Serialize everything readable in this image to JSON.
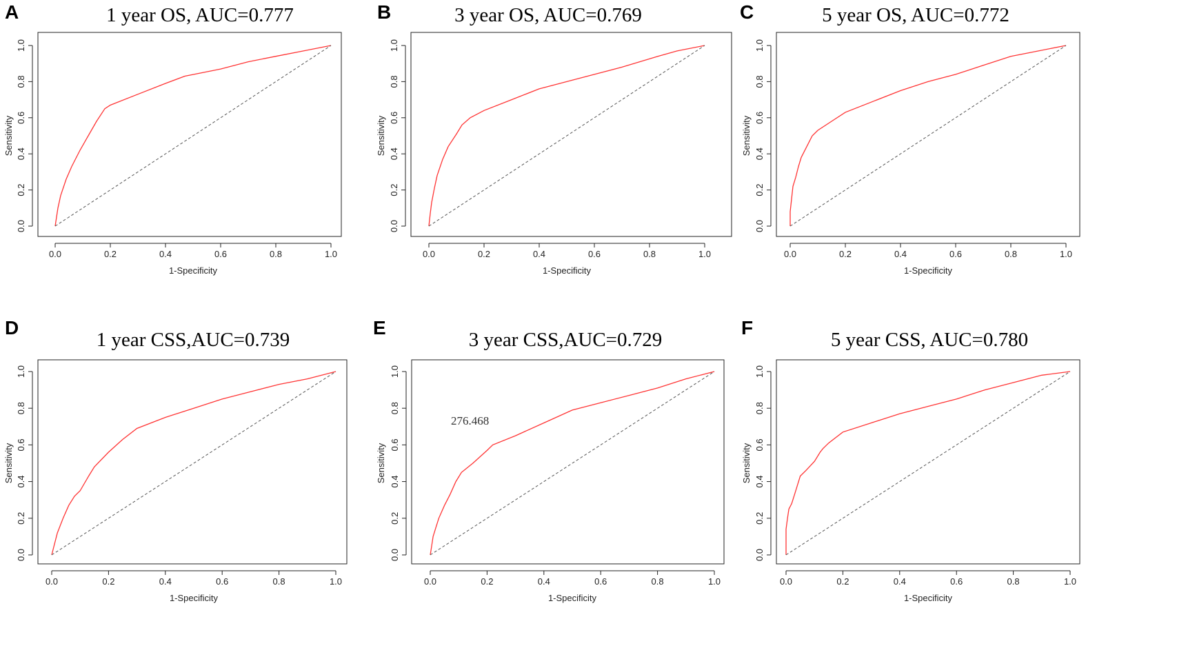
{
  "figure": {
    "panels": [
      {
        "letter": "A",
        "title": "1 year OS, AUC=0.777"
      },
      {
        "letter": "B",
        "title": "3 year OS, AUC=0.769"
      },
      {
        "letter": "C",
        "title": "5 year OS, AUC=0.772"
      },
      {
        "letter": "D",
        "title": "1 year CSS,AUC=0.739"
      },
      {
        "letter": "E",
        "title": "3 year CSS,AUC=0.729"
      },
      {
        "letter": "F",
        "title": "5 year CSS, AUC=0.780"
      }
    ]
  },
  "chart_data": [
    {
      "type": "line",
      "letter": "A",
      "title": "1 year OS, AUC=0.777",
      "xlabel": "1-Specificity",
      "ylabel": "Sensitivity",
      "xlim": [
        0,
        1
      ],
      "ylim": [
        0,
        1
      ],
      "xticks": [
        "0.0",
        "0.2",
        "0.4",
        "0.6",
        "0.8",
        "1.0"
      ],
      "yticks": [
        "0.0",
        "0.2",
        "0.4",
        "0.6",
        "0.8",
        "1.0"
      ],
      "colors": {
        "roc": "#ff3333",
        "reference": "#555555"
      },
      "series": [
        {
          "name": "ROC",
          "x": [
            0,
            0.01,
            0.02,
            0.04,
            0.06,
            0.09,
            0.12,
            0.15,
            0.18,
            0.2,
            0.3,
            0.4,
            0.47,
            0.6,
            0.7,
            0.8,
            0.9,
            1.0
          ],
          "y": [
            0,
            0.1,
            0.17,
            0.26,
            0.33,
            0.42,
            0.5,
            0.58,
            0.65,
            0.67,
            0.73,
            0.79,
            0.83,
            0.87,
            0.91,
            0.94,
            0.97,
            1.0
          ]
        },
        {
          "name": "Reference",
          "x": [
            0,
            1
          ],
          "y": [
            0,
            1
          ]
        }
      ]
    },
    {
      "type": "line",
      "letter": "B",
      "title": "3 year OS, AUC=0.769",
      "xlabel": "1-Specificity",
      "ylabel": "Sensitivity",
      "xlim": [
        0,
        1
      ],
      "ylim": [
        0,
        1
      ],
      "xticks": [
        "0.0",
        "0.2",
        "0.4",
        "0.6",
        "0.8",
        "1.0"
      ],
      "yticks": [
        "0.0",
        "0.2",
        "0.4",
        "0.6",
        "0.8",
        "1.0"
      ],
      "colors": {
        "roc": "#ff3333",
        "reference": "#555555"
      },
      "series": [
        {
          "name": "ROC",
          "x": [
            0,
            0.005,
            0.01,
            0.02,
            0.03,
            0.05,
            0.07,
            0.1,
            0.12,
            0.15,
            0.2,
            0.3,
            0.4,
            0.5,
            0.6,
            0.7,
            0.83,
            0.9,
            1.0
          ],
          "y": [
            0,
            0.07,
            0.13,
            0.21,
            0.28,
            0.37,
            0.44,
            0.51,
            0.56,
            0.6,
            0.64,
            0.7,
            0.76,
            0.8,
            0.84,
            0.88,
            0.94,
            0.97,
            1.0
          ]
        },
        {
          "name": "Reference",
          "x": [
            0,
            1
          ],
          "y": [
            0,
            1
          ]
        }
      ]
    },
    {
      "type": "line",
      "letter": "C",
      "title": "5 year OS, AUC=0.772",
      "xlabel": "1-Specificity",
      "ylabel": "Sensitivity",
      "xlim": [
        0,
        1
      ],
      "ylim": [
        0,
        1
      ],
      "xticks": [
        "0.0",
        "0.2",
        "0.4",
        "0.6",
        "0.8",
        "1.0"
      ],
      "yticks": [
        "0.0",
        "0.2",
        "0.4",
        "0.6",
        "0.8",
        "1.0"
      ],
      "colors": {
        "roc": "#ff3333",
        "reference": "#555555"
      },
      "series": [
        {
          "name": "ROC",
          "x": [
            0,
            0,
            0.005,
            0.01,
            0.02,
            0.03,
            0.04,
            0.06,
            0.08,
            0.1,
            0.15,
            0.2,
            0.3,
            0.4,
            0.5,
            0.6,
            0.7,
            0.8,
            0.9,
            1.0
          ],
          "y": [
            0,
            0.08,
            0.15,
            0.22,
            0.27,
            0.33,
            0.38,
            0.44,
            0.5,
            0.53,
            0.58,
            0.63,
            0.69,
            0.75,
            0.8,
            0.84,
            0.89,
            0.94,
            0.97,
            1.0
          ]
        },
        {
          "name": "Reference",
          "x": [
            0,
            1
          ],
          "y": [
            0,
            1
          ]
        }
      ]
    },
    {
      "type": "line",
      "letter": "D",
      "title": "1 year CSS,AUC=0.739",
      "xlabel": "1-Specificity",
      "ylabel": "Sensitivity",
      "xlim": [
        0,
        1
      ],
      "ylim": [
        0,
        1
      ],
      "xticks": [
        "0.0",
        "0.2",
        "0.4",
        "0.6",
        "0.8",
        "1.0"
      ],
      "yticks": [
        "0.0",
        "0.2",
        "0.4",
        "0.6",
        "0.8",
        "1.0"
      ],
      "colors": {
        "roc": "#ff3333",
        "reference": "#555555"
      },
      "series": [
        {
          "name": "ROC",
          "x": [
            0,
            0.01,
            0.02,
            0.04,
            0.06,
            0.08,
            0.1,
            0.13,
            0.15,
            0.2,
            0.25,
            0.3,
            0.4,
            0.5,
            0.6,
            0.7,
            0.8,
            0.9,
            1.0
          ],
          "y": [
            0,
            0.06,
            0.12,
            0.2,
            0.27,
            0.32,
            0.35,
            0.43,
            0.48,
            0.56,
            0.63,
            0.69,
            0.75,
            0.8,
            0.85,
            0.89,
            0.93,
            0.96,
            1.0
          ]
        },
        {
          "name": "Reference",
          "x": [
            0,
            1
          ],
          "y": [
            0,
            1
          ]
        }
      ]
    },
    {
      "type": "line",
      "letter": "E",
      "title": "3 year CSS,AUC=0.729",
      "xlabel": "1-Specificity",
      "ylabel": "Sensitivity",
      "xlim": [
        0,
        1
      ],
      "ylim": [
        0,
        1
      ],
      "xticks": [
        "0.0",
        "0.2",
        "0.4",
        "0.6",
        "0.8",
        "1.0"
      ],
      "yticks": [
        "0.0",
        "0.2",
        "0.4",
        "0.6",
        "0.8",
        "1.0"
      ],
      "annotation": {
        "text": "276.468",
        "x": 0.14,
        "y": 0.71
      },
      "colors": {
        "roc": "#ff3333",
        "reference": "#555555"
      },
      "series": [
        {
          "name": "ROC",
          "x": [
            0,
            0.005,
            0.01,
            0.02,
            0.03,
            0.05,
            0.07,
            0.09,
            0.11,
            0.15,
            0.2,
            0.22,
            0.3,
            0.4,
            0.5,
            0.6,
            0.7,
            0.8,
            0.9,
            1.0
          ],
          "y": [
            0,
            0.05,
            0.1,
            0.15,
            0.2,
            0.27,
            0.33,
            0.4,
            0.45,
            0.5,
            0.57,
            0.6,
            0.65,
            0.72,
            0.79,
            0.83,
            0.87,
            0.91,
            0.96,
            1.0
          ]
        },
        {
          "name": "Reference",
          "x": [
            0,
            1
          ],
          "y": [
            0,
            1
          ]
        }
      ]
    },
    {
      "type": "line",
      "letter": "F",
      "title": "5 year CSS, AUC=0.780",
      "xlabel": "1-Specificity",
      "ylabel": "Sensitivity",
      "xlim": [
        0,
        1
      ],
      "ylim": [
        0,
        1
      ],
      "xticks": [
        "0.0",
        "0.2",
        "0.4",
        "0.6",
        "0.8",
        "1.0"
      ],
      "yticks": [
        "0.0",
        "0.2",
        "0.4",
        "0.6",
        "0.8",
        "1.0"
      ],
      "colors": {
        "roc": "#ff3333",
        "reference": "#555555"
      },
      "series": [
        {
          "name": "ROC",
          "x": [
            0,
            0,
            0.005,
            0.01,
            0.02,
            0.03,
            0.04,
            0.05,
            0.07,
            0.1,
            0.12,
            0.13,
            0.15,
            0.2,
            0.3,
            0.4,
            0.5,
            0.6,
            0.7,
            0.8,
            0.9,
            1.0
          ],
          "y": [
            0,
            0.14,
            0.2,
            0.25,
            0.28,
            0.33,
            0.38,
            0.43,
            0.46,
            0.51,
            0.56,
            0.58,
            0.61,
            0.67,
            0.72,
            0.77,
            0.81,
            0.85,
            0.9,
            0.94,
            0.98,
            1.0
          ]
        },
        {
          "name": "Reference",
          "x": [
            0,
            1
          ],
          "y": [
            0,
            1
          ]
        }
      ]
    }
  ]
}
